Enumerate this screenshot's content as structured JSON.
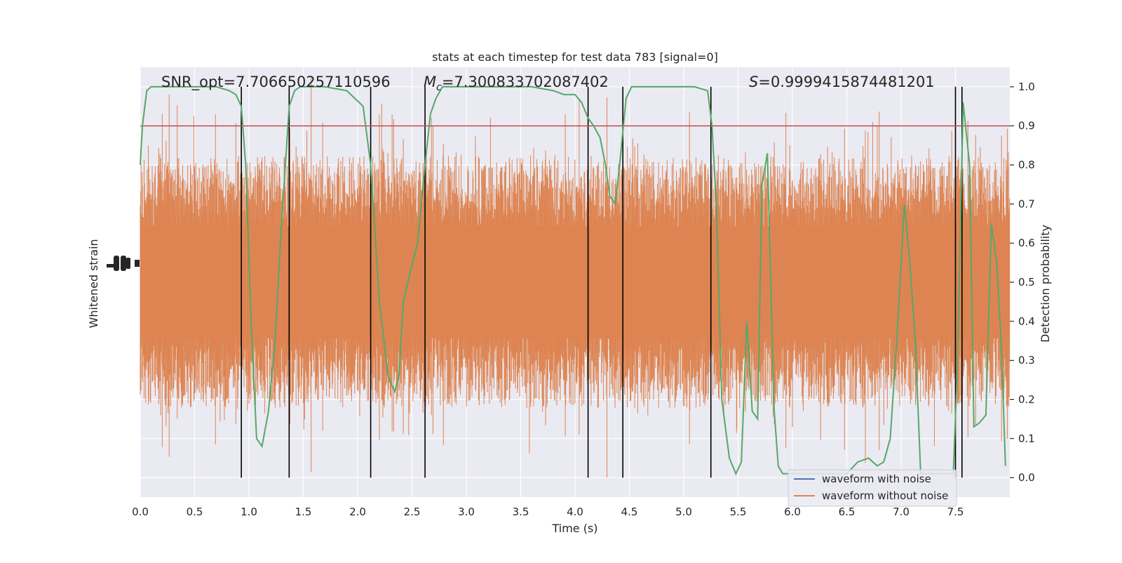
{
  "chart_data": {
    "type": "line",
    "title": "stats at each timestep for test data 783 [signal=0]",
    "xlabel": "Time (s)",
    "ylabel_left": "Whitened strain",
    "ylabel_right": "Detection probability",
    "xlim": [
      0.0,
      8.0
    ],
    "ylim_right": [
      -0.05,
      1.05
    ],
    "x_ticks": [
      0.0,
      0.5,
      1.0,
      1.5,
      2.0,
      2.5,
      3.0,
      3.5,
      4.0,
      4.5,
      5.0,
      5.5,
      6.0,
      6.5,
      7.0,
      7.5
    ],
    "x_tick_labels": [
      "0.0",
      "0.5",
      "1.0",
      "1.5",
      "2.0",
      "2.5",
      "3.0",
      "3.5",
      "4.0",
      "4.5",
      "5.0",
      "5.5",
      "6.0",
      "6.5",
      "7.0",
      "7.5"
    ],
    "y_ticks_right": [
      0.0,
      0.1,
      0.2,
      0.3,
      0.4,
      0.5,
      0.6,
      0.7,
      0.8,
      0.9,
      1.0
    ],
    "y_tick_labels_right": [
      "0.0",
      "0.1",
      "0.2",
      "0.3",
      "0.4",
      "0.5",
      "0.6",
      "0.7",
      "0.8",
      "0.9",
      "1.0"
    ],
    "grid": true,
    "legend_position": "lower-right",
    "annotations": {
      "snr": "SNR_opt=7.706650257110596",
      "mc": "=7.300833702087402",
      "mc_symbol": "M",
      "mc_subscript": "c",
      "s": "=0.9999415874481201",
      "s_symbol": "S"
    },
    "series": [
      {
        "name": "waveform with noise",
        "color": "#4c72b0",
        "values": []
      },
      {
        "name": "waveform without noise",
        "color": "#dd8452",
        "values": []
      }
    ],
    "detection_probability": {
      "color": "#55a868",
      "x": [
        0.0,
        0.02,
        0.06,
        0.1,
        0.15,
        0.2,
        0.3,
        0.5,
        0.7,
        0.82,
        0.88,
        0.93,
        0.97,
        1.02,
        1.07,
        1.12,
        1.18,
        1.24,
        1.3,
        1.37,
        1.42,
        1.47,
        1.55,
        1.7,
        1.9,
        2.05,
        2.12,
        2.2,
        2.28,
        2.34,
        2.38,
        2.42,
        2.48,
        2.55,
        2.62,
        2.67,
        2.72,
        2.78,
        2.85,
        2.95,
        3.2,
        3.6,
        3.8,
        3.9,
        4.0,
        4.06,
        4.12,
        4.17,
        4.23,
        4.28,
        4.32,
        4.37,
        4.41,
        4.47,
        4.52,
        4.62,
        4.75,
        5.1,
        5.22,
        5.26,
        5.3,
        5.35,
        5.42,
        5.48,
        5.53,
        5.58,
        5.63,
        5.68,
        5.72,
        5.77,
        5.83,
        5.87,
        5.91,
        6.0,
        6.1,
        6.3,
        6.5,
        6.6,
        6.7,
        6.78,
        6.84,
        6.9,
        6.96,
        7.03,
        7.08,
        7.13,
        7.18,
        7.4,
        7.48,
        7.52,
        7.57,
        7.63,
        7.67,
        7.72,
        7.78,
        7.83,
        7.88,
        7.92,
        7.96
      ],
      "y": [
        0.8,
        0.9,
        0.99,
        1.0,
        1.0,
        1.0,
        1.0,
        1.0,
        1.0,
        0.99,
        0.98,
        0.95,
        0.8,
        0.4,
        0.1,
        0.08,
        0.17,
        0.35,
        0.65,
        0.95,
        0.99,
        1.0,
        1.0,
        1.0,
        0.99,
        0.95,
        0.8,
        0.45,
        0.26,
        0.22,
        0.26,
        0.45,
        0.52,
        0.6,
        0.8,
        0.93,
        0.97,
        1.0,
        1.0,
        1.0,
        1.0,
        1.0,
        0.99,
        0.98,
        0.98,
        0.96,
        0.92,
        0.9,
        0.87,
        0.8,
        0.72,
        0.7,
        0.8,
        0.97,
        1.0,
        1.0,
        1.0,
        1.0,
        0.99,
        0.9,
        0.7,
        0.2,
        0.05,
        0.01,
        0.04,
        0.4,
        0.17,
        0.15,
        0.75,
        0.83,
        0.18,
        0.03,
        0.01,
        0.01,
        0.01,
        0.01,
        0.01,
        0.04,
        0.05,
        0.03,
        0.04,
        0.1,
        0.35,
        0.7,
        0.55,
        0.35,
        0.01,
        0.01,
        0.01,
        0.3,
        0.96,
        0.8,
        0.13,
        0.14,
        0.16,
        0.65,
        0.55,
        0.35,
        0.03
      ]
    },
    "threshold": {
      "value": 0.9,
      "color": "#c44e52"
    },
    "vertical_markers": {
      "color": "#000000",
      "x": [
        0.93,
        1.37,
        2.12,
        2.62,
        4.12,
        4.44,
        5.25,
        7.5,
        7.56
      ]
    }
  }
}
